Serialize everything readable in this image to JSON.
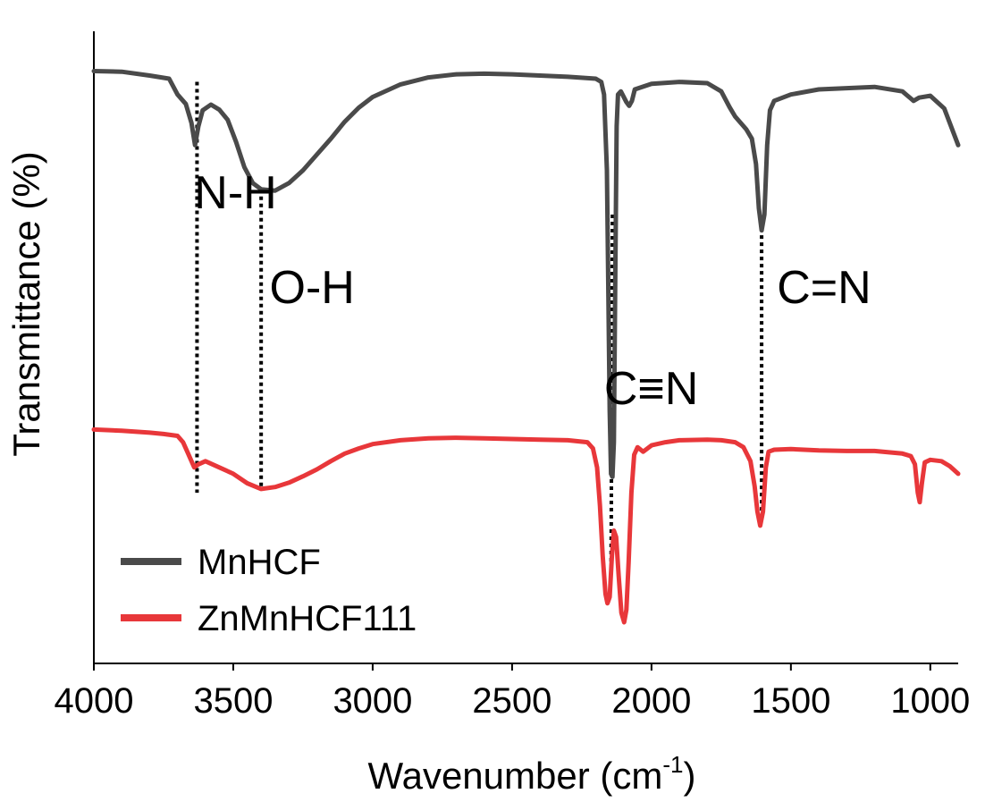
{
  "chart_data": {
    "type": "line",
    "xlabel": "Wavenumber (cm",
    "xlabel_sup": "-1",
    "xlabel_end": ")",
    "ylabel": "Transmittance (%)",
    "xlim": [
      4000,
      900
    ],
    "ylim": [
      0,
      100
    ],
    "x_ticks": [
      4000,
      3500,
      3000,
      2500,
      2000,
      1500,
      1000
    ],
    "x_tick_labels": [
      "4000",
      "3500",
      "3000",
      "2500",
      "2000",
      "1500",
      "1000"
    ],
    "y_ticks_shown": false,
    "grid": false,
    "legend_position": "bottom-left",
    "series": [
      {
        "name": "MnHCF",
        "color": "#4a4a4a",
        "points": [
          [
            4000,
            93.7
          ],
          [
            3900,
            93.6
          ],
          [
            3800,
            93.0
          ],
          [
            3730,
            92.5
          ],
          [
            3700,
            90.0
          ],
          [
            3670,
            88.5
          ],
          [
            3650,
            85.5
          ],
          [
            3637,
            82.0
          ],
          [
            3625,
            85.0
          ],
          [
            3610,
            87.5
          ],
          [
            3580,
            88.4
          ],
          [
            3550,
            87.6
          ],
          [
            3520,
            86.0
          ],
          [
            3490,
            82.5
          ],
          [
            3460,
            78.5
          ],
          [
            3430,
            76.0
          ],
          [
            3400,
            75.0
          ],
          [
            3350,
            74.8
          ],
          [
            3300,
            76.0
          ],
          [
            3250,
            78.0
          ],
          [
            3200,
            80.5
          ],
          [
            3150,
            83.0
          ],
          [
            3100,
            85.7
          ],
          [
            3050,
            87.9
          ],
          [
            3000,
            89.6
          ],
          [
            2900,
            91.6
          ],
          [
            2800,
            92.7
          ],
          [
            2700,
            93.2
          ],
          [
            2600,
            93.3
          ],
          [
            2500,
            93.2
          ],
          [
            2400,
            93.0
          ],
          [
            2300,
            92.8
          ],
          [
            2200,
            92.5
          ],
          [
            2180,
            92.0
          ],
          [
            2170,
            90.0
          ],
          [
            2160,
            78.0
          ],
          [
            2155,
            60.0
          ],
          [
            2150,
            40.0
          ],
          [
            2145,
            30.0
          ],
          [
            2140,
            29.5
          ],
          [
            2135,
            35.0
          ],
          [
            2130,
            60.0
          ],
          [
            2125,
            85.0
          ],
          [
            2120,
            90.0
          ],
          [
            2110,
            90.5
          ],
          [
            2090,
            88.8
          ],
          [
            2080,
            88.2
          ],
          [
            2070,
            89.0
          ],
          [
            2060,
            90.8
          ],
          [
            2000,
            91.7
          ],
          [
            1900,
            92.0
          ],
          [
            1800,
            91.8
          ],
          [
            1750,
            90.5
          ],
          [
            1720,
            88.0
          ],
          [
            1700,
            86.5
          ],
          [
            1680,
            85.5
          ],
          [
            1660,
            84.5
          ],
          [
            1640,
            83.0
          ],
          [
            1625,
            79.0
          ],
          [
            1615,
            72.0
          ],
          [
            1605,
            68.5
          ],
          [
            1595,
            71.0
          ],
          [
            1585,
            82.0
          ],
          [
            1575,
            87.5
          ],
          [
            1560,
            89.0
          ],
          [
            1500,
            90.0
          ],
          [
            1400,
            90.8
          ],
          [
            1300,
            91.0
          ],
          [
            1200,
            91.2
          ],
          [
            1100,
            90.5
          ],
          [
            1060,
            89.0
          ],
          [
            1040,
            89.5
          ],
          [
            1000,
            89.8
          ],
          [
            950,
            87.8
          ],
          [
            900,
            82.0
          ]
        ]
      },
      {
        "name": "ZnMnHCF111",
        "color": "#e8373a",
        "points": [
          [
            4000,
            37.0
          ],
          [
            3900,
            36.8
          ],
          [
            3800,
            36.5
          ],
          [
            3750,
            36.3
          ],
          [
            3700,
            36.0
          ],
          [
            3680,
            35.0
          ],
          [
            3660,
            33.0
          ],
          [
            3640,
            31.0
          ],
          [
            3625,
            31.5
          ],
          [
            3600,
            32.0
          ],
          [
            3550,
            31.0
          ],
          [
            3500,
            30.0
          ],
          [
            3450,
            28.5
          ],
          [
            3400,
            27.6
          ],
          [
            3350,
            27.9
          ],
          [
            3300,
            28.6
          ],
          [
            3250,
            29.6
          ],
          [
            3200,
            30.7
          ],
          [
            3150,
            32.0
          ],
          [
            3100,
            33.2
          ],
          [
            3050,
            34.0
          ],
          [
            3000,
            34.7
          ],
          [
            2900,
            35.3
          ],
          [
            2800,
            35.6
          ],
          [
            2700,
            35.7
          ],
          [
            2600,
            35.6
          ],
          [
            2500,
            35.5
          ],
          [
            2400,
            35.4
          ],
          [
            2300,
            35.3
          ],
          [
            2230,
            35.0
          ],
          [
            2210,
            34.0
          ],
          [
            2195,
            31.0
          ],
          [
            2185,
            25.0
          ],
          [
            2175,
            17.0
          ],
          [
            2165,
            11.0
          ],
          [
            2158,
            9.5
          ],
          [
            2150,
            10.5
          ],
          [
            2142,
            17.0
          ],
          [
            2135,
            21.0
          ],
          [
            2127,
            20.0
          ],
          [
            2118,
            14.0
          ],
          [
            2108,
            8.0
          ],
          [
            2098,
            6.5
          ],
          [
            2090,
            8.5
          ],
          [
            2082,
            16.0
          ],
          [
            2072,
            27.0
          ],
          [
            2062,
            33.0
          ],
          [
            2050,
            34.2
          ],
          [
            2030,
            33.5
          ],
          [
            2000,
            34.5
          ],
          [
            1950,
            35.0
          ],
          [
            1900,
            35.3
          ],
          [
            1800,
            35.4
          ],
          [
            1750,
            35.3
          ],
          [
            1700,
            35.0
          ],
          [
            1670,
            34.2
          ],
          [
            1645,
            32.0
          ],
          [
            1630,
            28.0
          ],
          [
            1620,
            24.0
          ],
          [
            1610,
            21.8
          ],
          [
            1600,
            24.0
          ],
          [
            1590,
            31.0
          ],
          [
            1580,
            33.5
          ],
          [
            1560,
            33.8
          ],
          [
            1500,
            33.9
          ],
          [
            1400,
            33.7
          ],
          [
            1300,
            33.6
          ],
          [
            1200,
            33.6
          ],
          [
            1100,
            33.2
          ],
          [
            1070,
            32.8
          ],
          [
            1055,
            31.5
          ],
          [
            1045,
            27.0
          ],
          [
            1038,
            25.5
          ],
          [
            1030,
            28.5
          ],
          [
            1020,
            31.8
          ],
          [
            1000,
            32.2
          ],
          [
            960,
            32.0
          ],
          [
            930,
            31.2
          ],
          [
            900,
            30.0
          ]
        ]
      }
    ],
    "annotations": [
      {
        "text": "N-H",
        "x": 3640,
        "y": 72
      },
      {
        "text": "O-H",
        "x": 3370,
        "y": 57
      },
      {
        "text": "C≡N",
        "x": 2170,
        "y": 41
      },
      {
        "text": "C=N",
        "x": 1550,
        "y": 57
      }
    ],
    "marker_lines": [
      {
        "x1": 3630,
        "y1": 92,
        "x2": 3630,
        "y2": 27
      },
      {
        "x1": 3400,
        "y1": 75,
        "x2": 3400,
        "y2": 27.6
      },
      {
        "x1": 2140,
        "y1": 71,
        "x2": 2145,
        "y2": 14
      },
      {
        "x1": 1605,
        "y1": 70,
        "x2": 1605,
        "y2": 24
      }
    ]
  }
}
